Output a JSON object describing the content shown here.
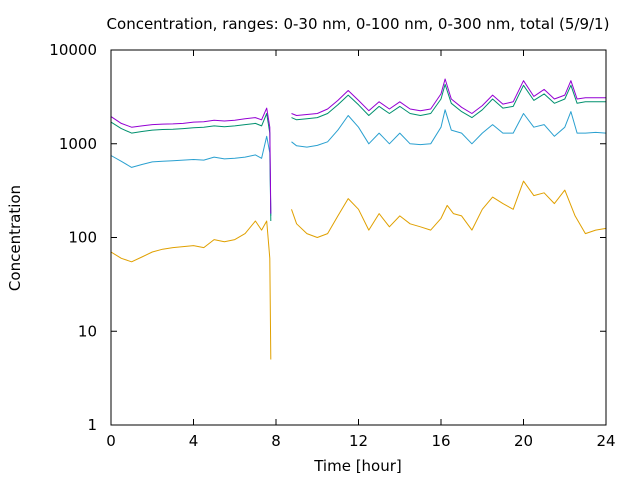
{
  "chart_data": {
    "type": "line",
    "title": "Concentration, ranges: 0-30 nm, 0-100 nm, 0-300 nm, total (5/9/1)",
    "xlabel": "Time [hour]",
    "ylabel": "Concentration",
    "xlim": [
      0,
      24
    ],
    "ylim": [
      1,
      10000
    ],
    "yscale": "log",
    "grid": false,
    "legend": "none",
    "x_ticks": [
      "0",
      "4",
      "8",
      "12",
      "16",
      "20",
      "24"
    ],
    "y_ticks": [
      "1",
      "10",
      "100",
      "1000",
      "10000"
    ],
    "series": [
      {
        "color": "#e0a000",
        "values": [
          [
            0.0,
            70
          ],
          [
            0.5,
            60
          ],
          [
            1.0,
            55
          ],
          [
            1.5,
            62
          ],
          [
            2.0,
            70
          ],
          [
            2.5,
            75
          ],
          [
            3.0,
            78
          ],
          [
            3.5,
            80
          ],
          [
            4.0,
            82
          ],
          [
            4.5,
            78
          ],
          [
            5.0,
            95
          ],
          [
            5.5,
            90
          ],
          [
            6.0,
            95
          ],
          [
            6.5,
            110
          ],
          [
            7.0,
            150
          ],
          [
            7.3,
            120
          ],
          [
            7.55,
            150
          ],
          [
            7.7,
            60
          ],
          [
            7.75,
            5
          ],
          null,
          [
            8.75,
            200
          ],
          [
            9.0,
            140
          ],
          [
            9.5,
            110
          ],
          [
            10.0,
            100
          ],
          [
            10.5,
            110
          ],
          [
            11.0,
            170
          ],
          [
            11.5,
            260
          ],
          [
            12.0,
            200
          ],
          [
            12.5,
            120
          ],
          [
            13.0,
            180
          ],
          [
            13.5,
            130
          ],
          [
            14.0,
            170
          ],
          [
            14.5,
            140
          ],
          [
            15.0,
            130
          ],
          [
            15.5,
            120
          ],
          [
            16.0,
            160
          ],
          [
            16.3,
            220
          ],
          [
            16.6,
            180
          ],
          [
            17.0,
            170
          ],
          [
            17.5,
            120
          ],
          [
            18.0,
            200
          ],
          [
            18.5,
            270
          ],
          [
            19.0,
            230
          ],
          [
            19.5,
            200
          ],
          [
            20.0,
            400
          ],
          [
            20.5,
            280
          ],
          [
            21.0,
            300
          ],
          [
            21.5,
            230
          ],
          [
            22.0,
            320
          ],
          [
            22.5,
            170
          ],
          [
            23.0,
            110
          ],
          [
            23.5,
            120
          ],
          [
            24.0,
            125
          ]
        ]
      },
      {
        "color": "#2aa0d0",
        "values": [
          [
            0.0,
            750
          ],
          [
            0.5,
            650
          ],
          [
            1.0,
            560
          ],
          [
            1.5,
            600
          ],
          [
            2.0,
            640
          ],
          [
            2.5,
            650
          ],
          [
            3.0,
            660
          ],
          [
            3.5,
            670
          ],
          [
            4.0,
            680
          ],
          [
            4.5,
            670
          ],
          [
            5.0,
            720
          ],
          [
            5.5,
            690
          ],
          [
            6.0,
            700
          ],
          [
            6.5,
            720
          ],
          [
            7.0,
            760
          ],
          [
            7.3,
            700
          ],
          [
            7.55,
            1200
          ],
          [
            7.7,
            800
          ],
          [
            7.75,
            170
          ],
          null,
          [
            8.75,
            1050
          ],
          [
            9.0,
            950
          ],
          [
            9.5,
            920
          ],
          [
            10.0,
            960
          ],
          [
            10.5,
            1050
          ],
          [
            11.0,
            1400
          ],
          [
            11.5,
            2000
          ],
          [
            12.0,
            1500
          ],
          [
            12.5,
            1000
          ],
          [
            13.0,
            1300
          ],
          [
            13.5,
            1000
          ],
          [
            14.0,
            1300
          ],
          [
            14.5,
            1000
          ],
          [
            15.0,
            980
          ],
          [
            15.5,
            1000
          ],
          [
            16.0,
            1500
          ],
          [
            16.2,
            2300
          ],
          [
            16.5,
            1400
          ],
          [
            17.0,
            1300
          ],
          [
            17.5,
            1000
          ],
          [
            18.0,
            1300
          ],
          [
            18.5,
            1600
          ],
          [
            19.0,
            1300
          ],
          [
            19.5,
            1300
          ],
          [
            20.0,
            2100
          ],
          [
            20.5,
            1500
          ],
          [
            21.0,
            1600
          ],
          [
            21.5,
            1200
          ],
          [
            22.0,
            1500
          ],
          [
            22.3,
            2200
          ],
          [
            22.6,
            1300
          ],
          [
            23.0,
            1300
          ],
          [
            23.5,
            1320
          ],
          [
            24.0,
            1300
          ]
        ]
      },
      {
        "color": "#00906e",
        "values": [
          [
            0.0,
            1700
          ],
          [
            0.5,
            1450
          ],
          [
            1.0,
            1300
          ],
          [
            1.5,
            1350
          ],
          [
            2.0,
            1400
          ],
          [
            2.5,
            1420
          ],
          [
            3.0,
            1430
          ],
          [
            3.5,
            1450
          ],
          [
            4.0,
            1480
          ],
          [
            4.5,
            1500
          ],
          [
            5.0,
            1550
          ],
          [
            5.5,
            1520
          ],
          [
            6.0,
            1550
          ],
          [
            6.5,
            1600
          ],
          [
            7.0,
            1650
          ],
          [
            7.3,
            1550
          ],
          [
            7.55,
            2100
          ],
          [
            7.7,
            1300
          ],
          [
            7.75,
            150
          ],
          null,
          [
            8.75,
            1900
          ],
          [
            9.0,
            1800
          ],
          [
            9.5,
            1850
          ],
          [
            10.0,
            1900
          ],
          [
            10.5,
            2100
          ],
          [
            11.0,
            2600
          ],
          [
            11.5,
            3300
          ],
          [
            12.0,
            2600
          ],
          [
            12.5,
            2000
          ],
          [
            13.0,
            2500
          ],
          [
            13.5,
            2100
          ],
          [
            14.0,
            2500
          ],
          [
            14.5,
            2100
          ],
          [
            15.0,
            2000
          ],
          [
            15.5,
            2100
          ],
          [
            16.0,
            3000
          ],
          [
            16.2,
            4300
          ],
          [
            16.5,
            2700
          ],
          [
            17.0,
            2200
          ],
          [
            17.5,
            1900
          ],
          [
            18.0,
            2300
          ],
          [
            18.5,
            3000
          ],
          [
            19.0,
            2400
          ],
          [
            19.5,
            2500
          ],
          [
            20.0,
            4200
          ],
          [
            20.5,
            2900
          ],
          [
            21.0,
            3400
          ],
          [
            21.5,
            2700
          ],
          [
            22.0,
            3000
          ],
          [
            22.3,
            4200
          ],
          [
            22.6,
            2700
          ],
          [
            23.0,
            2800
          ],
          [
            23.5,
            2800
          ],
          [
            24.0,
            2800
          ]
        ]
      },
      {
        "color": "#9400d3",
        "values": [
          [
            0.0,
            1950
          ],
          [
            0.5,
            1650
          ],
          [
            1.0,
            1500
          ],
          [
            1.5,
            1550
          ],
          [
            2.0,
            1600
          ],
          [
            2.5,
            1620
          ],
          [
            3.0,
            1630
          ],
          [
            3.5,
            1650
          ],
          [
            4.0,
            1700
          ],
          [
            4.5,
            1720
          ],
          [
            5.0,
            1780
          ],
          [
            5.5,
            1750
          ],
          [
            6.0,
            1780
          ],
          [
            6.5,
            1850
          ],
          [
            7.0,
            1900
          ],
          [
            7.3,
            1800
          ],
          [
            7.55,
            2400
          ],
          [
            7.7,
            1500
          ],
          [
            7.75,
            180
          ],
          null,
          [
            8.75,
            2100
          ],
          [
            9.0,
            2000
          ],
          [
            9.5,
            2050
          ],
          [
            10.0,
            2100
          ],
          [
            10.5,
            2350
          ],
          [
            11.0,
            2900
          ],
          [
            11.5,
            3700
          ],
          [
            12.0,
            2900
          ],
          [
            12.5,
            2250
          ],
          [
            13.0,
            2800
          ],
          [
            13.5,
            2350
          ],
          [
            14.0,
            2800
          ],
          [
            14.5,
            2350
          ],
          [
            15.0,
            2250
          ],
          [
            15.5,
            2350
          ],
          [
            16.0,
            3400
          ],
          [
            16.2,
            4900
          ],
          [
            16.5,
            3000
          ],
          [
            17.0,
            2450
          ],
          [
            17.5,
            2100
          ],
          [
            18.0,
            2550
          ],
          [
            18.5,
            3300
          ],
          [
            19.0,
            2650
          ],
          [
            19.5,
            2800
          ],
          [
            20.0,
            4700
          ],
          [
            20.5,
            3200
          ],
          [
            21.0,
            3800
          ],
          [
            21.5,
            3000
          ],
          [
            22.0,
            3300
          ],
          [
            22.3,
            4700
          ],
          [
            22.6,
            3000
          ],
          [
            23.0,
            3100
          ],
          [
            23.5,
            3100
          ],
          [
            24.0,
            3100
          ]
        ]
      }
    ]
  }
}
